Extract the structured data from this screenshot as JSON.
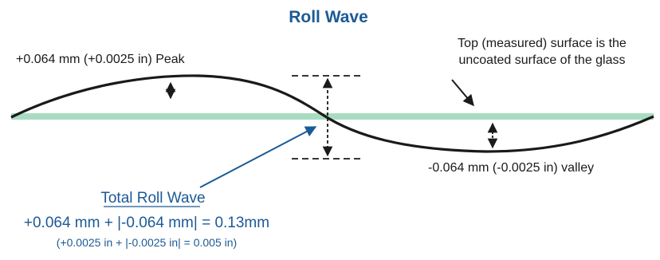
{
  "title": "Roll Wave",
  "labels": {
    "peak": "+0.064 mm (+0.0025 in) Peak",
    "valley": "-0.064 mm (-0.0025 in) valley",
    "surface_line1": "Top (measured) surface is the",
    "surface_line2": "uncoated surface of the glass"
  },
  "total": {
    "heading": "Total Roll Wave",
    "formula_mm": "+0.064 mm + |-0.064 mm| = 0.13mm",
    "formula_in": "(+0.0025 in + |-0.0025 in| = 0.005 in)"
  },
  "colors": {
    "title": "#1b5a96",
    "accent": "#1b5a96",
    "wave": "#1a1a1a",
    "baseline": "#a8dcc0",
    "text": "#1a1a1a"
  }
}
